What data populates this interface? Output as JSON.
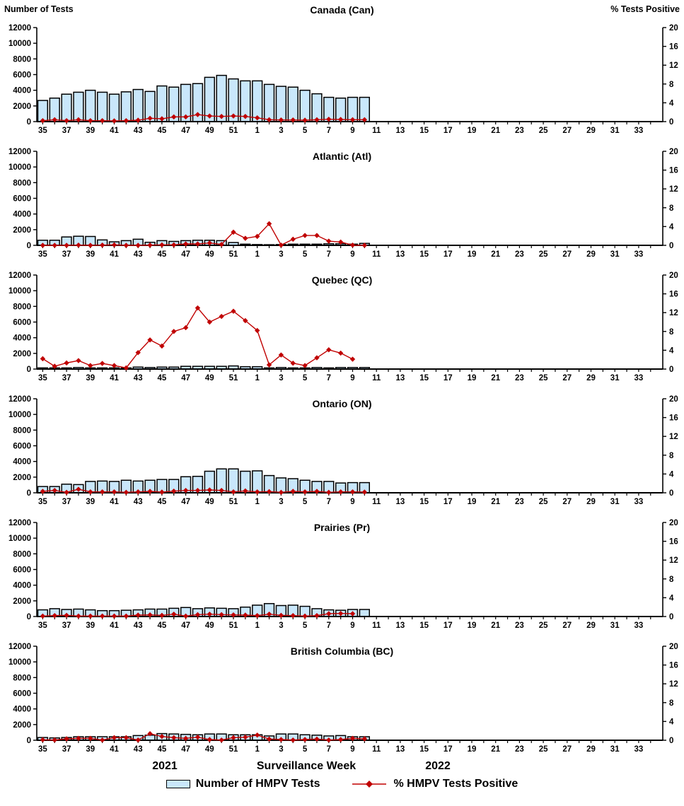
{
  "chart_data": {
    "type": "bar+line",
    "description_note": "Six stacked weekly surveillance panels; bars = number of HMPV tests (left axis), red diamond line = % HMPV tests positive (right axis)",
    "x": {
      "categories_weeks": [
        35,
        36,
        37,
        38,
        39,
        40,
        41,
        42,
        43,
        44,
        45,
        46,
        47,
        48,
        49,
        50,
        51,
        52,
        1,
        2,
        3,
        4,
        5,
        6,
        7,
        8,
        9,
        10,
        11,
        12,
        13,
        14,
        15,
        16,
        17,
        18,
        19,
        20,
        21,
        22,
        23,
        24,
        25,
        26,
        27,
        28,
        29,
        30,
        31,
        32,
        33,
        34
      ],
      "tick_labels_shown": [
        35,
        37,
        39,
        41,
        43,
        45,
        47,
        49,
        51,
        1,
        3,
        5,
        7,
        9,
        11,
        13,
        15,
        17,
        19,
        21,
        23,
        25,
        27,
        29,
        31,
        33
      ],
      "axis_title": "Surveillance Week",
      "year_left": "2021",
      "year_right": "2022"
    },
    "left_axis": {
      "title": "Number of Tests",
      "min": 0,
      "max": 12000,
      "ticks": [
        0,
        2000,
        4000,
        6000,
        8000,
        10000,
        12000
      ]
    },
    "right_axis": {
      "title": "% Tests Positive",
      "min": 0,
      "max": 20,
      "ticks": [
        0,
        4,
        8,
        12,
        16,
        20
      ]
    },
    "legend": [
      {
        "label": "Number of HMPV Tests",
        "type": "bar"
      },
      {
        "label": "% HMPV Tests Positive",
        "type": "line"
      }
    ],
    "colors": {
      "bar_fill": "#C9E7FB",
      "bar_stroke": "#000000",
      "line": "#C00000",
      "axis": "#000000"
    },
    "panels": [
      {
        "id": "canada",
        "title": "Canada (Can)",
        "tests": [
          2700,
          3000,
          3500,
          3750,
          4000,
          3750,
          3500,
          3800,
          4100,
          3850,
          4550,
          4400,
          4750,
          4850,
          5650,
          5900,
          5450,
          5200,
          5200,
          4750,
          4500,
          4400,
          4000,
          3550,
          3100,
          3000,
          3100,
          3100
        ],
        "pct_positive": [
          0.2,
          0.4,
          0.2,
          0.4,
          0.2,
          0.2,
          0.15,
          0.2,
          0.3,
          0.7,
          0.6,
          1.0,
          1.0,
          1.5,
          1.2,
          1.1,
          1.2,
          1.1,
          0.8,
          0.4,
          0.35,
          0.35,
          0.3,
          0.4,
          0.5,
          0.45,
          0.4,
          0.4
        ]
      },
      {
        "id": "atlantic",
        "title": "Atlantic (Atl)",
        "tests": [
          650,
          650,
          1070,
          1160,
          1130,
          690,
          450,
          600,
          780,
          390,
          600,
          500,
          600,
          650,
          650,
          600,
          360,
          150,
          100,
          80,
          100,
          150,
          150,
          150,
          200,
          200,
          150,
          250
        ],
        "pct_positive": [
          0,
          0,
          0,
          0.05,
          0,
          0.05,
          0.1,
          0,
          0,
          0.05,
          0.1,
          0.1,
          0.3,
          0.3,
          0.5,
          0.2,
          2.8,
          1.5,
          1.9,
          4.6,
          0.05,
          1.3,
          2.1,
          2.1,
          0.9,
          0.7,
          0.05,
          0
        ]
      },
      {
        "id": "quebec",
        "title": "Quebec (QC)",
        "tests": [
          150,
          150,
          150,
          200,
          150,
          150,
          150,
          150,
          250,
          200,
          250,
          250,
          350,
          350,
          350,
          350,
          400,
          300,
          300,
          150,
          200,
          150,
          150,
          200,
          150,
          200,
          200,
          200
        ],
        "pct_positive": [
          2.2,
          0.6,
          1.3,
          1.8,
          0.75,
          1.2,
          0.75,
          0.25,
          3.5,
          6.2,
          4.9,
          8.0,
          8.8,
          13.0,
          10.0,
          11.2,
          12.3,
          10.3,
          8.2,
          0.9,
          3.0,
          1.25,
          0.75,
          2.4,
          4.1,
          3.4,
          2.1,
          null
        ]
      },
      {
        "id": "ontario",
        "title": "Ontario (ON)",
        "tests": [
          800,
          800,
          1100,
          1050,
          1450,
          1500,
          1450,
          1600,
          1500,
          1600,
          1700,
          1700,
          2050,
          2100,
          2750,
          3050,
          3050,
          2750,
          2800,
          2200,
          1900,
          1800,
          1600,
          1450,
          1450,
          1250,
          1300,
          1300
        ],
        "pct_positive": [
          0.3,
          0.5,
          0.1,
          0.75,
          0.2,
          0.2,
          0.2,
          0.1,
          0.2,
          0.3,
          0.15,
          0.35,
          0.5,
          0.5,
          0.6,
          0.5,
          0.2,
          0.4,
          0.2,
          0.25,
          0.1,
          0.3,
          0.2,
          0.3,
          0.1,
          0.2,
          0.2,
          0.15
        ]
      },
      {
        "id": "prairies",
        "title": "Prairies (Pr)",
        "tests": [
          850,
          1000,
          900,
          950,
          850,
          750,
          750,
          800,
          850,
          950,
          950,
          1050,
          1150,
          1000,
          1100,
          1050,
          1000,
          1200,
          1450,
          1650,
          1400,
          1450,
          1300,
          1000,
          850,
          800,
          900,
          900
        ],
        "pct_positive": [
          0.1,
          0.2,
          0.25,
          0.1,
          0.1,
          0.1,
          0.1,
          0.1,
          0.3,
          0.35,
          0.25,
          0.5,
          0.1,
          0.4,
          0.5,
          0.4,
          0.35,
          0.3,
          0.2,
          0.5,
          0.25,
          0.2,
          0.1,
          0.2,
          0.6,
          0.65,
          0.6,
          null
        ]
      },
      {
        "id": "bc",
        "title": "British Columbia (BC)",
        "tests": [
          350,
          300,
          350,
          450,
          450,
          450,
          450,
          450,
          600,
          650,
          850,
          800,
          750,
          700,
          800,
          800,
          700,
          700,
          700,
          550,
          800,
          800,
          700,
          650,
          550,
          600,
          450,
          450
        ],
        "pct_positive": [
          0.1,
          0.05,
          0.3,
          0.4,
          0.4,
          0.05,
          0.55,
          0.55,
          0.05,
          1.4,
          0.8,
          0.55,
          0.4,
          0.65,
          0.15,
          0.05,
          0.55,
          0.65,
          1.1,
          0.25,
          0.15,
          0.05,
          0.15,
          0.25,
          0.05,
          0.15,
          0.4,
          0.3
        ]
      }
    ]
  }
}
